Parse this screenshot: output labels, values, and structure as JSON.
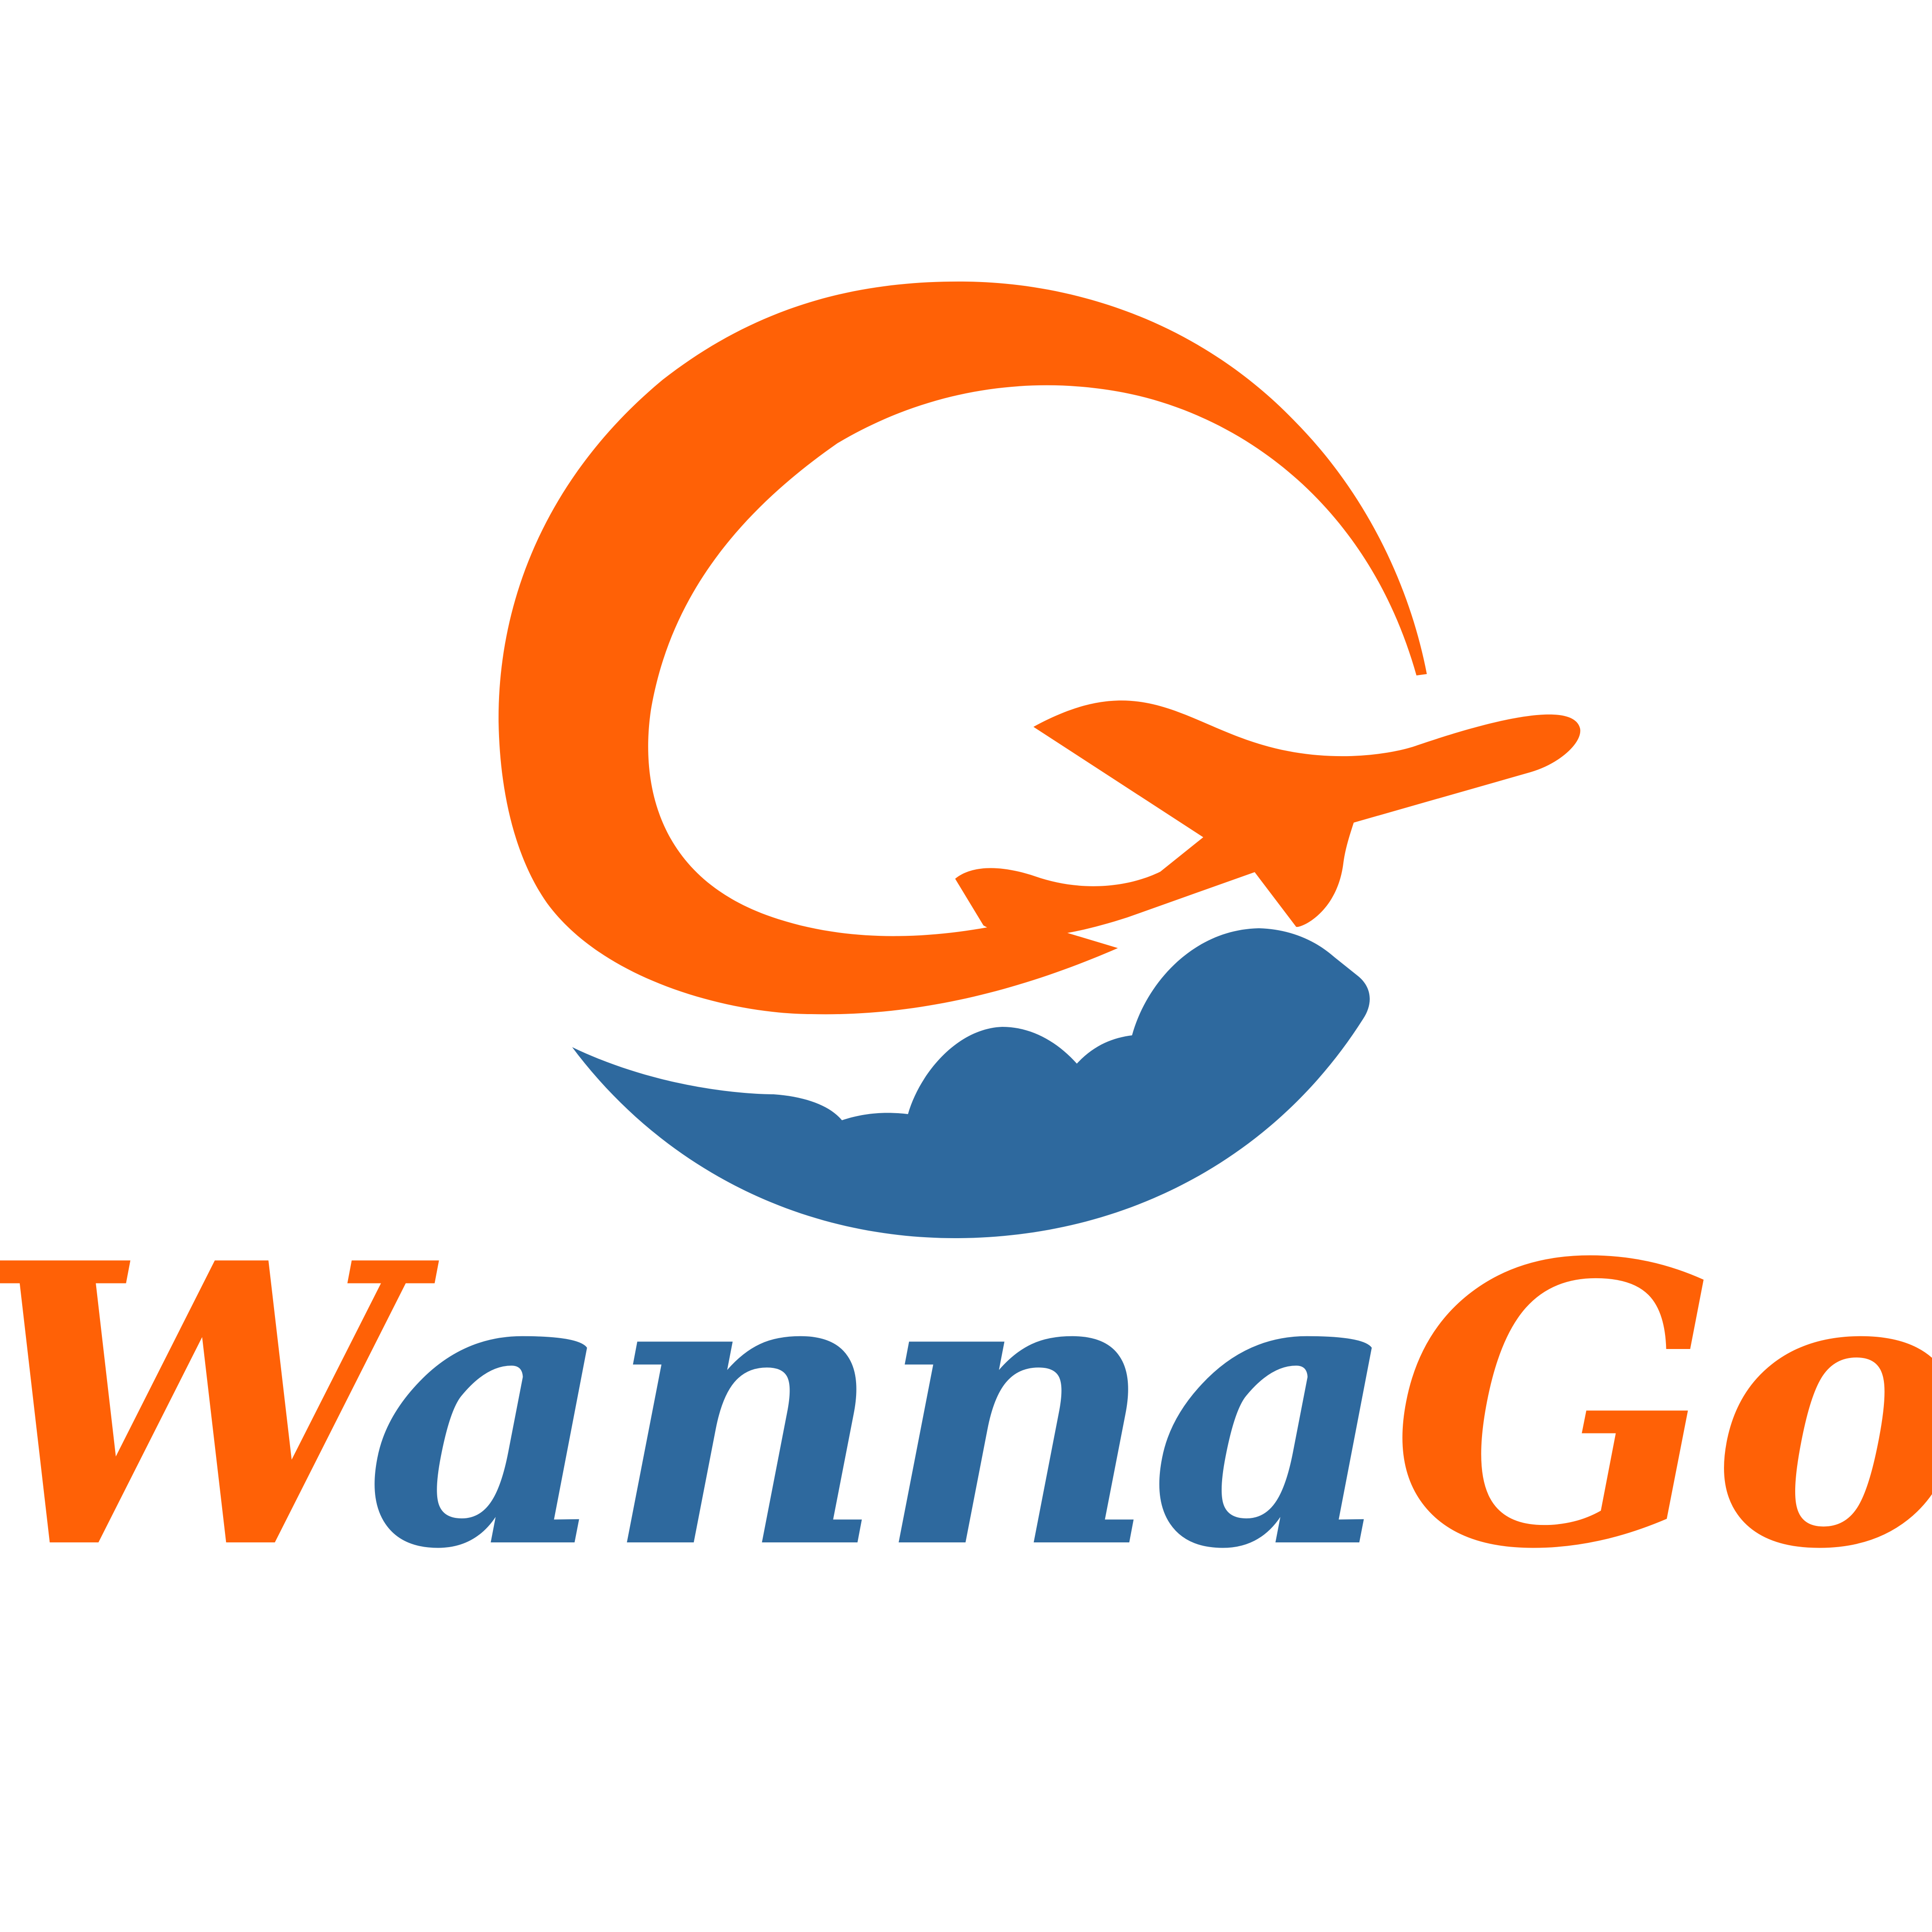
{
  "logo": {
    "wordmark_part1": "Wanna",
    "wordmark_part2": "Go",
    "colors": {
      "orange": "#FF6106",
      "blue": "#2E699E",
      "background": "#FFFFFF"
    }
  }
}
